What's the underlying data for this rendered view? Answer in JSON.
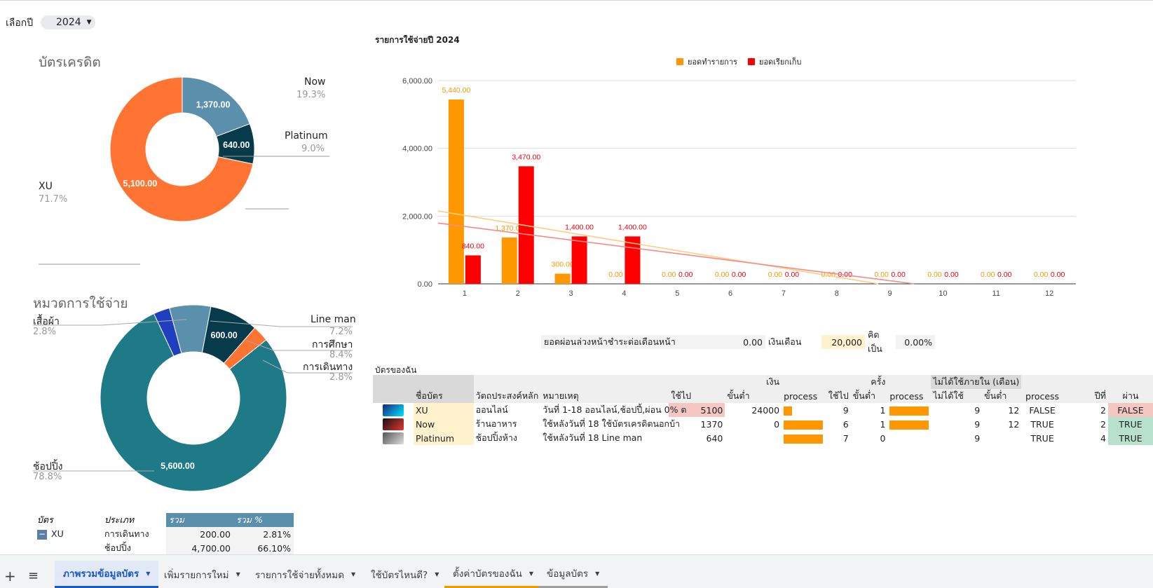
{
  "controls": {
    "year_label": "เลือกปี",
    "year_value": "2024"
  },
  "credit_pie": {
    "title": "บัตรเครดิต",
    "slices": [
      {
        "name": "Now",
        "value": 1370,
        "value_label": "1,370.00",
        "pct": "19.3%",
        "color": "#5b90ad"
      },
      {
        "name": "Platinum",
        "value": 640,
        "value_label": "640.00",
        "pct": "9.0%",
        "color": "#073b4c"
      },
      {
        "name": "XU",
        "value": 5100,
        "value_label": "5,100.00",
        "pct": "71.7%",
        "color": "#ff7433"
      }
    ]
  },
  "category_pie": {
    "title": "หมวดการใช้จ่าย",
    "slices": [
      {
        "name": "Line man",
        "value": 510,
        "pct": "7.2%",
        "color": "#5b90ad"
      },
      {
        "name": "การศึกษา",
        "value": 600,
        "value_label": "600.00",
        "pct": "8.4%",
        "color": "#073b4c"
      },
      {
        "name": "การเดินทาง",
        "value": 200,
        "pct": "2.8%",
        "color": "#ff7433"
      },
      {
        "name": "ช้อปปิ้ง",
        "value": 5600,
        "value_label": "5,600.00",
        "pct": "78.8%",
        "color": "#1e7a87"
      },
      {
        "name": "เสื้อผ้า",
        "value": 200,
        "pct": "2.8%",
        "color": "#1f3fbf"
      }
    ]
  },
  "chart_data": {
    "type": "bar",
    "title": "รายการใช้จ่ายปี 2024",
    "categories": [
      "1",
      "2",
      "3",
      "4",
      "5",
      "6",
      "7",
      "8",
      "9",
      "10",
      "11",
      "12"
    ],
    "ylim": [
      0,
      6000
    ],
    "yticks": [
      "0.00",
      "2,000.00",
      "4,000.00",
      "6,000.00"
    ],
    "series": [
      {
        "name": "ยอดทำรายการ",
        "color": "#ff9800",
        "values": [
          5440,
          1370,
          300,
          0,
          0,
          0,
          0,
          0,
          0,
          0,
          0,
          0
        ],
        "labels": [
          "5,440.00",
          "1,370.00",
          "300.00",
          "0.00",
          "0.00",
          "0.00",
          "0.00",
          "0.00",
          "0.00",
          "0.00",
          "0.00",
          "0.00"
        ]
      },
      {
        "name": "ยอดเรียกเก็บ",
        "color": "#ff0000",
        "values": [
          840,
          3470,
          1400,
          1400,
          0,
          0,
          0,
          0,
          0,
          0,
          0,
          0
        ],
        "labels": [
          "840.00",
          "3,470.00",
          "1,400.00",
          "1,400.00",
          "0.00",
          "0.00",
          "0.00",
          "0.00",
          "0.00",
          "0.00",
          "0.00",
          "0.00"
        ]
      }
    ],
    "trendlines": true,
    "legend": "top"
  },
  "summary": {
    "installment_label": "ยอดผ่อนล่วงหน้าชำระต่อเดือนหน้า",
    "installment_value": "0.00",
    "salary_label": "เงินเดือน",
    "salary_value": "20,000",
    "ratio_label": "คิดเป็น",
    "ratio_value": "0.00%"
  },
  "cards_table": {
    "title": "บัตรของฉัน",
    "group_money": "เงิน",
    "group_times": "ครั้ง",
    "group_unused": "ไม่ได้ใช้ภายใน (เดือน)",
    "headers": [
      "ชื่อบัตร",
      "วัตถประสงค์หลัก",
      "หมายเหตุ",
      "ใช้ไป",
      "ขั้นต่ำ",
      "process",
      "ใช้ไป",
      "ขั้นต่ำ",
      "process",
      "ไม่ได้ใช้",
      "ขั้นต่ำ",
      "process",
      "ปีที่",
      "ผ่าน"
    ],
    "rows": [
      {
        "name": "XU",
        "purpose": "ออนไลน์",
        "note": "วันที่ 1-18 ออนไลน์,ช้อปปี้,ผ่อน 0% ต",
        "used": "5100",
        "min": "24000",
        "proc_money": 0.21,
        "used_n": "9",
        "min_n": "1",
        "proc_n": 1.0,
        "unused": "9",
        "min_m": "12",
        "proc_m": "FALSE",
        "year": "2",
        "pass": "FALSE"
      },
      {
        "name": "Now",
        "purpose": "ร้านอาหาร",
        "note": "ใช้หลังวันที่ 18 ใช้บัตรเครดิตนอกบ้า",
        "used": "1370",
        "min": "0",
        "proc_money": 1.0,
        "used_n": "6",
        "min_n": "1",
        "proc_n": 1.0,
        "unused": "9",
        "min_m": "12",
        "proc_m": "TRUE",
        "year": "2",
        "pass": "TRUE"
      },
      {
        "name": "Platinum",
        "purpose": "ช้อปปิ้งห้าง",
        "note": "ใช้หลังวันที่ 18 Line man",
        "used": "640",
        "min": "",
        "proc_money": 1.0,
        "used_n": "7",
        "min_n": "0",
        "proc_n": 0,
        "unused": "9",
        "min_m": "",
        "proc_m": "TRUE",
        "year": "4",
        "pass": "TRUE"
      }
    ]
  },
  "pivot": {
    "headers": [
      "บัตร",
      "ประเภท",
      "รวม",
      "รวม %"
    ],
    "rows": [
      {
        "card": "XU",
        "type": "การเดินทาง",
        "sum": "200.00",
        "pct": "2.81%"
      },
      {
        "card": "",
        "type": "ช้อปปิ้ง",
        "sum": "4,700.00",
        "pct": "66.10%"
      }
    ]
  },
  "tabs": [
    {
      "label": "ภาพรวมข้อมูลบัตร"
    },
    {
      "label": "เพิ่มรายการใหม่"
    },
    {
      "label": "รายการใช้จ่ายทั้งหมด"
    },
    {
      "label": "ใช้บัตรไหนดี?"
    },
    {
      "label": "ตั้งค่าบัตรของฉัน"
    },
    {
      "label": "ข้อมูลบัตร"
    }
  ]
}
